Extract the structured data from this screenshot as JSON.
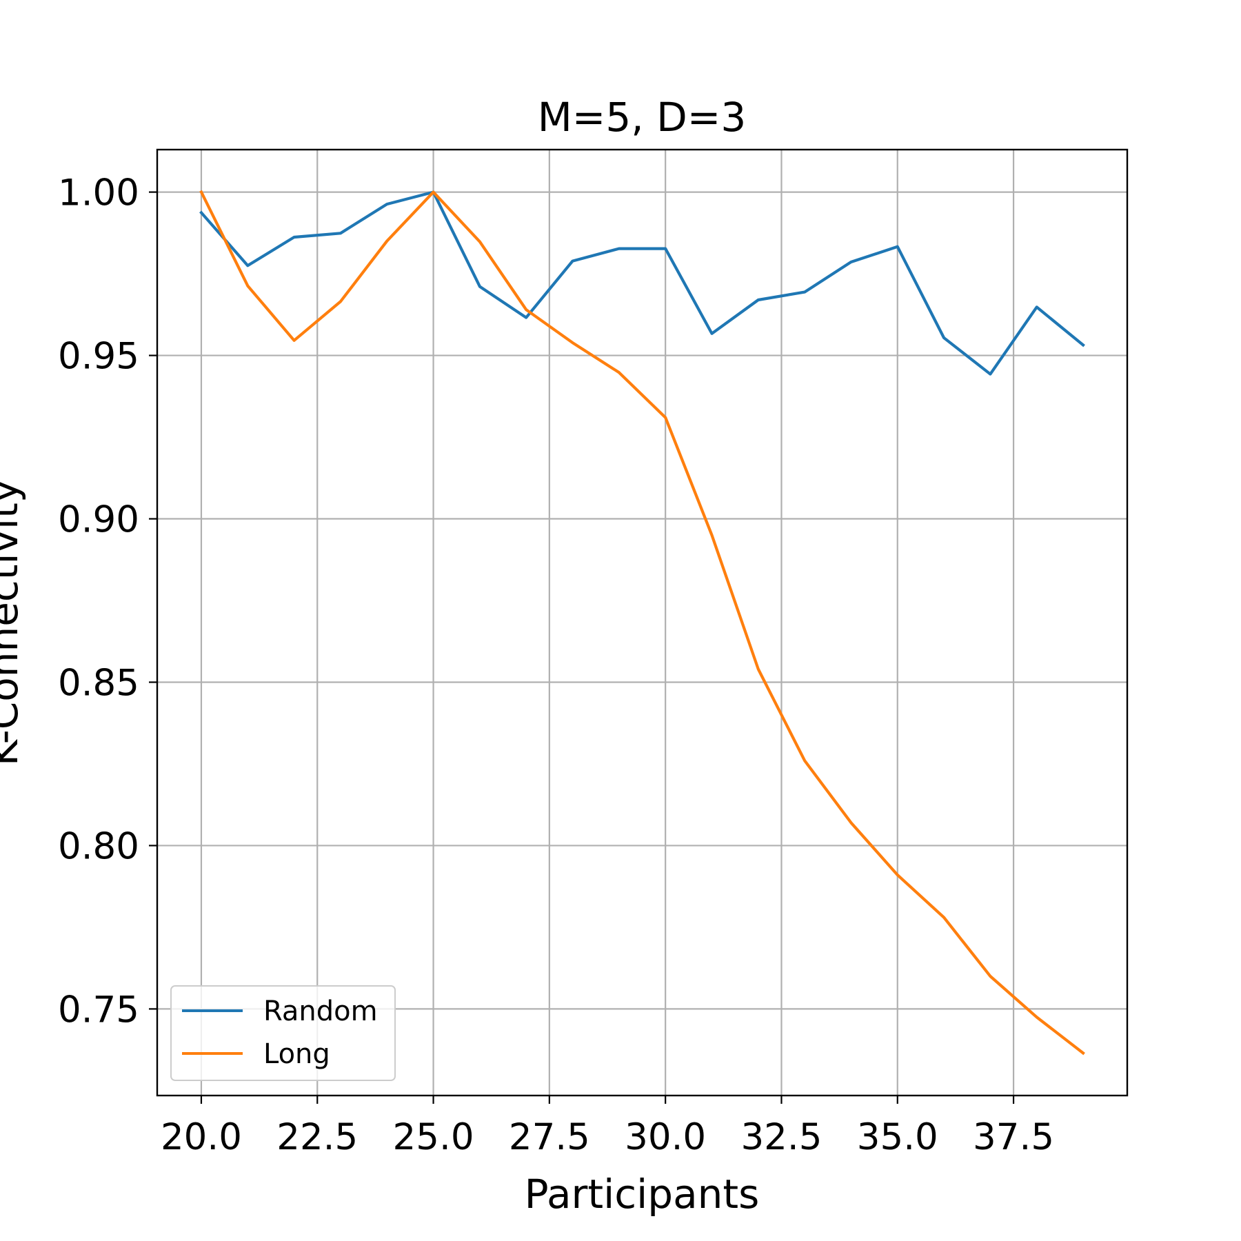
{
  "chart_data": {
    "type": "line",
    "title": "M=5, D=3",
    "xlabel": "Participants",
    "ylabel": "K-Connectivity",
    "xlim": [
      19.05,
      39.95
    ],
    "ylim": [
      0.7235,
      1.013
    ],
    "xticks": [
      "20.0",
      "22.5",
      "25.0",
      "27.5",
      "30.0",
      "32.5",
      "35.0",
      "37.5"
    ],
    "yticks": [
      "0.75",
      "0.80",
      "0.85",
      "0.90",
      "0.95",
      "1.00"
    ],
    "grid": true,
    "legend_position": "lower-left",
    "x": [
      20,
      21,
      22,
      23,
      24,
      25,
      26,
      27,
      28,
      29,
      30,
      31,
      32,
      33,
      34,
      35,
      36,
      37,
      38,
      39
    ],
    "series": [
      {
        "name": "Random",
        "color": "#1f77b4",
        "values": [
          0.9937,
          0.9775,
          0.9862,
          0.9874,
          0.9963,
          1.0,
          0.9711,
          0.9616,
          0.9789,
          0.9827,
          0.9827,
          0.9567,
          0.967,
          0.9694,
          0.9786,
          0.9833,
          0.9554,
          0.9443,
          0.9648,
          0.9532
        ]
      },
      {
        "name": "Long",
        "color": "#ff7f0e",
        "values": [
          1.0,
          0.9713,
          0.9546,
          0.9665,
          0.985,
          1.0,
          0.9848,
          0.964,
          0.9539,
          0.9448,
          0.931,
          0.895,
          0.854,
          0.826,
          0.807,
          0.791,
          0.778,
          0.76,
          0.7475,
          0.7365
        ]
      }
    ]
  }
}
